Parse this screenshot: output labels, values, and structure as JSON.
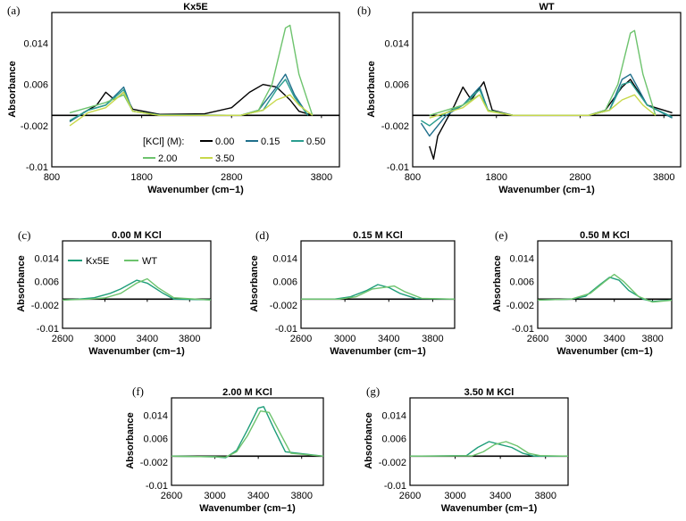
{
  "figure": {
    "ylabel": "Absorbance",
    "xlabel": "Wavenumber (cm−1)"
  },
  "legend_main": {
    "title": "[KCl] (M):",
    "entries": [
      {
        "name": "0.00",
        "color": "#000000"
      },
      {
        "name": "0.15",
        "color": "#1f6f8b"
      },
      {
        "name": "0.50",
        "color": "#2a9d8f"
      },
      {
        "name": "2.00",
        "color": "#6dc36d"
      },
      {
        "name": "3.50",
        "color": "#c8d84a"
      }
    ]
  },
  "legend_compare": {
    "entries": [
      {
        "name": "Kx5E",
        "color": "#1f9e7a"
      },
      {
        "name": "WT",
        "color": "#6dc36d"
      }
    ]
  },
  "chart_data": [
    {
      "id": "a",
      "panel_label": "(a)",
      "title": "Kx5E",
      "type": "line",
      "xlabel": "Wavenumber (cm−1)",
      "ylabel": "Absorbance",
      "xlim": [
        800,
        4000
      ],
      "ylim": [
        -0.01,
        0.02
      ],
      "xticks": [
        800,
        1800,
        2800,
        3800
      ],
      "yticks": [
        -0.01,
        -0.002,
        0.006,
        0.014
      ],
      "series": [
        {
          "name": "0.00",
          "color": "#000000",
          "x": [
            1000,
            1150,
            1300,
            1400,
            1500,
            1600,
            1700,
            2000,
            2500,
            2800,
            3000,
            3150,
            3300,
            3450,
            3550,
            3700
          ],
          "y": [
            -0.0012,
            0.0005,
            0.002,
            0.0045,
            0.003,
            0.0045,
            0.0012,
            0.0002,
            0.0003,
            0.0015,
            0.0045,
            0.006,
            0.0055,
            0.003,
            0.0008,
            0
          ]
        },
        {
          "name": "0.15",
          "color": "#1f6f8b",
          "x": [
            1000,
            1200,
            1400,
            1600,
            1700,
            2000,
            2900,
            3100,
            3300,
            3400,
            3500,
            3650
          ],
          "y": [
            -0.0012,
            0.001,
            0.002,
            0.0055,
            0.0008,
            0.0001,
            0,
            0.001,
            0.0055,
            0.008,
            0.004,
            0
          ]
        },
        {
          "name": "0.50",
          "color": "#2a9d8f",
          "x": [
            1000,
            1200,
            1400,
            1600,
            1700,
            2000,
            2900,
            3150,
            3300,
            3400,
            3500,
            3650
          ],
          "y": [
            -0.001,
            0.001,
            0.002,
            0.005,
            0.0008,
            0.0001,
            0,
            0.001,
            0.005,
            0.007,
            0.0035,
            0
          ]
        },
        {
          "name": "2.00",
          "color": "#6dc36d",
          "x": [
            1000,
            1200,
            1400,
            1600,
            1700,
            2000,
            2900,
            3100,
            3250,
            3400,
            3450,
            3550,
            3700
          ],
          "y": [
            0.0005,
            0.0015,
            0.0025,
            0.004,
            0.0008,
            0,
            0,
            0.001,
            0.006,
            0.017,
            0.0175,
            0.008,
            0
          ]
        },
        {
          "name": "3.50",
          "color": "#c8d84a",
          "x": [
            1000,
            1200,
            1400,
            1600,
            1700,
            2000,
            2900,
            3150,
            3300,
            3450,
            3550,
            3700
          ],
          "y": [
            -0.002,
            0.0005,
            0.0015,
            0.0045,
            0.0008,
            0,
            0,
            0.001,
            0.003,
            0.004,
            0.002,
            0
          ]
        }
      ]
    },
    {
      "id": "b",
      "panel_label": "(b)",
      "title": "WT",
      "type": "line",
      "xlabel": "Wavenumber (cm−1)",
      "ylabel": "Absorbance",
      "xlim": [
        800,
        4000
      ],
      "ylim": [
        -0.01,
        0.02
      ],
      "xticks": [
        800,
        1800,
        2800,
        3800
      ],
      "yticks": [
        -0.01,
        -0.002,
        0.006,
        0.014
      ],
      "series": [
        {
          "name": "0.00",
          "color": "#000000",
          "x": [
            1000,
            1050,
            1100,
            1200,
            1300,
            1400,
            1500,
            1650,
            1750,
            2000,
            2900,
            3100,
            3300,
            3400,
            3600,
            3900
          ],
          "y": [
            -0.006,
            -0.0085,
            -0.004,
            -0.001,
            0.002,
            0.0055,
            0.003,
            0.0065,
            0.001,
            0,
            0,
            0.001,
            0.0055,
            0.007,
            0.002,
            0.0005
          ]
        },
        {
          "name": "0.15",
          "color": "#1f6f8b",
          "x": [
            900,
            1000,
            1100,
            1200,
            1400,
            1600,
            1700,
            2000,
            2900,
            3150,
            3300,
            3400,
            3600,
            3900
          ],
          "y": [
            -0.0015,
            -0.004,
            -0.002,
            0,
            0.002,
            0.0055,
            0.001,
            0,
            0,
            0.001,
            0.007,
            0.008,
            0.002,
            -0.0005
          ]
        },
        {
          "name": "0.50",
          "color": "#2a9d8f",
          "x": [
            900,
            1000,
            1200,
            1400,
            1600,
            1700,
            2000,
            2900,
            3150,
            3300,
            3400,
            3600,
            3900
          ],
          "y": [
            -0.001,
            -0.002,
            0.0005,
            0.002,
            0.005,
            0.001,
            0,
            0,
            0.001,
            0.006,
            0.0065,
            0.002,
            -0.0003
          ]
        },
        {
          "name": "2.00",
          "color": "#6dc36d",
          "x": [
            1000,
            1200,
            1400,
            1600,
            1700,
            2000,
            2900,
            3100,
            3250,
            3400,
            3450,
            3550,
            3700
          ],
          "y": [
            0,
            0.001,
            0.002,
            0.004,
            0.001,
            0,
            0,
            0.001,
            0.006,
            0.016,
            0.0165,
            0.008,
            0
          ]
        },
        {
          "name": "3.50",
          "color": "#c8d84a",
          "x": [
            1000,
            1200,
            1400,
            1600,
            1700,
            2000,
            2900,
            3150,
            3300,
            3450,
            3550,
            3700
          ],
          "y": [
            -0.0005,
            0.0005,
            0.0015,
            0.004,
            0.0008,
            0,
            0,
            0.001,
            0.003,
            0.004,
            0.002,
            0
          ]
        }
      ]
    },
    {
      "id": "c",
      "panel_label": "(c)",
      "title": "0.00 M KCl",
      "type": "line",
      "xlabel": "Wavenumber (cm−1)",
      "ylabel": "Absorbance",
      "xlim": [
        2600,
        4000
      ],
      "ylim": [
        -0.01,
        0.02
      ],
      "xticks": [
        2600,
        3000,
        3400,
        3800
      ],
      "yticks": [
        -0.01,
        -0.002,
        0.006,
        0.014
      ],
      "series": [
        {
          "name": "Kx5E",
          "color": "#1f9e7a",
          "x": [
            2600,
            2750,
            2900,
            3050,
            3150,
            3300,
            3400,
            3550,
            3650,
            4000
          ],
          "y": [
            -0.0003,
            0,
            0.0005,
            0.002,
            0.0035,
            0.0065,
            0.0055,
            0.002,
            0,
            -0.0002
          ]
        },
        {
          "name": "WT",
          "color": "#6dc36d",
          "x": [
            2600,
            2850,
            3000,
            3150,
            3300,
            3400,
            3500,
            3650,
            4000
          ],
          "y": [
            -0.0003,
            0,
            0.0004,
            0.002,
            0.0055,
            0.007,
            0.004,
            0.0005,
            -0.0003
          ]
        }
      ]
    },
    {
      "id": "d",
      "panel_label": "(d)",
      "title": "0.15 M KCl",
      "type": "line",
      "xlabel": "Wavenumber (cm−1)",
      "ylabel": "Absorbance",
      "xlim": [
        2600,
        4000
      ],
      "ylim": [
        -0.01,
        0.02
      ],
      "xticks": [
        2600,
        3000,
        3400,
        3800
      ],
      "yticks": [
        -0.01,
        -0.002,
        0.006,
        0.014
      ],
      "series": [
        {
          "name": "Kx5E",
          "color": "#1f9e7a",
          "x": [
            2600,
            2900,
            3050,
            3200,
            3300,
            3400,
            3500,
            3650,
            4000
          ],
          "y": [
            0,
            0,
            0.0008,
            0.003,
            0.005,
            0.004,
            0.002,
            0.0002,
            0
          ]
        },
        {
          "name": "WT",
          "color": "#6dc36d",
          "x": [
            2600,
            2950,
            3100,
            3250,
            3350,
            3450,
            3550,
            3700,
            4000
          ],
          "y": [
            0,
            0,
            0.0008,
            0.0035,
            0.004,
            0.0045,
            0.0025,
            0.0003,
            0
          ]
        }
      ]
    },
    {
      "id": "e",
      "panel_label": "(e)",
      "title": "0.50 M KCl",
      "type": "line",
      "xlabel": "Wavenumber (cm−1)",
      "ylabel": "Absorbance",
      "xlim": [
        2600,
        4000
      ],
      "ylim": [
        -0.01,
        0.02
      ],
      "xticks": [
        2600,
        3000,
        3400,
        3800
      ],
      "yticks": [
        -0.01,
        -0.002,
        0.006,
        0.014
      ],
      "series": [
        {
          "name": "Kx5E",
          "color": "#1f9e7a",
          "x": [
            2600,
            2950,
            3100,
            3250,
            3350,
            3450,
            3550,
            3700,
            3800,
            4000
          ],
          "y": [
            -0.0003,
            0,
            0.001,
            0.005,
            0.0075,
            0.0065,
            0.003,
            0,
            -0.0008,
            -0.0003
          ]
        },
        {
          "name": "WT",
          "color": "#6dc36d",
          "x": [
            2600,
            2950,
            3150,
            3300,
            3400,
            3500,
            3650,
            3800,
            4000
          ],
          "y": [
            -0.0003,
            0,
            0.002,
            0.006,
            0.0085,
            0.006,
            0.001,
            -0.001,
            -0.0004
          ]
        }
      ]
    },
    {
      "id": "f",
      "panel_label": "(f)",
      "title": "2.00 M KCl",
      "type": "line",
      "xlabel": "Wavenumber (cm−1)",
      "ylabel": "Absorbance",
      "xlim": [
        2600,
        4000
      ],
      "ylim": [
        -0.01,
        0.02
      ],
      "xticks": [
        2600,
        3000,
        3400,
        3800
      ],
      "yticks": [
        -0.01,
        -0.002,
        0.006,
        0.014
      ],
      "series": [
        {
          "name": "Kx5E",
          "color": "#1f9e7a",
          "x": [
            2600,
            3000,
            3100,
            3200,
            3300,
            3400,
            3450,
            3550,
            3650,
            4000
          ],
          "y": [
            0,
            -0.0002,
            -0.0005,
            0.002,
            0.009,
            0.0165,
            0.017,
            0.009,
            0.0015,
            0
          ]
        },
        {
          "name": "WT",
          "color": "#6dc36d",
          "x": [
            2600,
            3000,
            3100,
            3200,
            3300,
            3420,
            3500,
            3600,
            3700,
            4000
          ],
          "y": [
            0,
            -0.0002,
            -0.0003,
            0.0015,
            0.007,
            0.0155,
            0.015,
            0.008,
            0.001,
            0
          ]
        }
      ]
    },
    {
      "id": "g",
      "panel_label": "(g)",
      "title": "3.50 M KCl",
      "type": "line",
      "xlabel": "Wavenumber (cm−1)",
      "ylabel": "Absorbance",
      "xlim": [
        2600,
        4000
      ],
      "ylim": [
        -0.01,
        0.02
      ],
      "xticks": [
        2600,
        3000,
        3400,
        3800
      ],
      "yticks": [
        -0.01,
        -0.002,
        0.006,
        0.014
      ],
      "series": [
        {
          "name": "Kx5E",
          "color": "#1f9e7a",
          "x": [
            2600,
            3100,
            3200,
            3300,
            3400,
            3500,
            3600,
            3700,
            4000
          ],
          "y": [
            0,
            0.0002,
            0.003,
            0.005,
            0.004,
            0.003,
            0.001,
            0,
            0
          ]
        },
        {
          "name": "WT",
          "color": "#6dc36d",
          "x": [
            2600,
            3150,
            3250,
            3350,
            3450,
            3550,
            3650,
            3750,
            4000
          ],
          "y": [
            0,
            0.0001,
            0.0015,
            0.004,
            0.005,
            0.0035,
            0.001,
            0.0002,
            0
          ]
        }
      ]
    }
  ]
}
